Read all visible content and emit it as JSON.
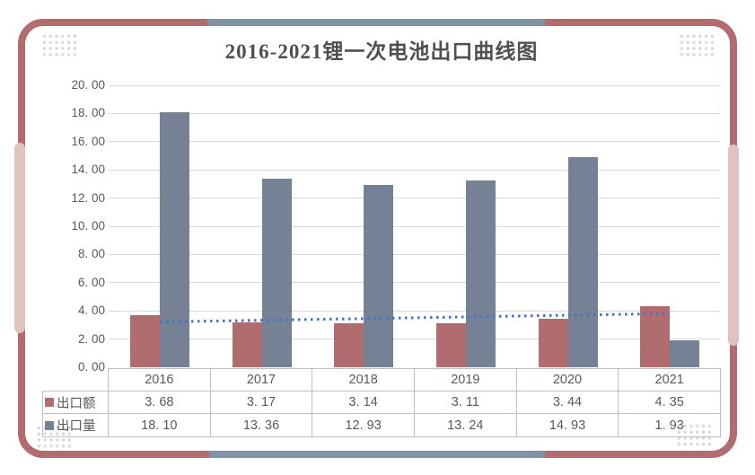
{
  "title": "2016-2021锂一次电池出口曲线图",
  "colors": {
    "frame_red": "#b26b6f",
    "frame_blue_gray": "#8192a5",
    "frame_pink": "#e2c2bf",
    "corner_dot_gray": "#d9d9d9",
    "bar_red": "#b16c70",
    "bar_blue_gray": "#758194",
    "trend_blue": "#4472c4",
    "gridline_gray": "#d9d9d9",
    "table_border_gray": "#bfbfbf",
    "text_gray": "#595959",
    "title_gray": "#4f4f4f"
  },
  "chart_data": {
    "type": "bar",
    "title": "2016-2021锂一次电池出口曲线图",
    "categories": [
      "2016",
      "2017",
      "2018",
      "2019",
      "2020",
      "2021"
    ],
    "series": [
      {
        "name": "出口额",
        "color": "#b16c70",
        "values": [
          3.68,
          3.17,
          3.14,
          3.11,
          3.44,
          4.35
        ]
      },
      {
        "name": "出口量",
        "color": "#758194",
        "values": [
          18.1,
          13.36,
          12.93,
          13.24,
          14.93,
          1.93
        ]
      }
    ],
    "trendline": {
      "for_series": "出口额",
      "kind": "linear",
      "style": "dotted",
      "color": "#4472c4",
      "start_value": 3.19,
      "end_value": 3.78
    },
    "y_axis": {
      "min": 0,
      "max": 20,
      "step": 2,
      "tick_labels": [
        "0. 00",
        "2. 00",
        "4. 00",
        "6. 00",
        "8. 00",
        "10. 00",
        "12. 00",
        "14. 00",
        "16. 00",
        "18. 00",
        "20. 00"
      ]
    },
    "xlabel": "",
    "ylabel": "",
    "gridlines": true,
    "legend_position": "data-table-row-labels",
    "data_table": {
      "row_labels": [
        "出口额",
        "出口量"
      ],
      "rows": [
        [
          "3. 68",
          "3. 17",
          "3. 14",
          "3. 11",
          "3. 44",
          "4. 35"
        ],
        [
          "18. 10",
          "13. 36",
          "12. 93",
          "13. 24",
          "14. 93",
          "1. 93"
        ]
      ]
    }
  }
}
